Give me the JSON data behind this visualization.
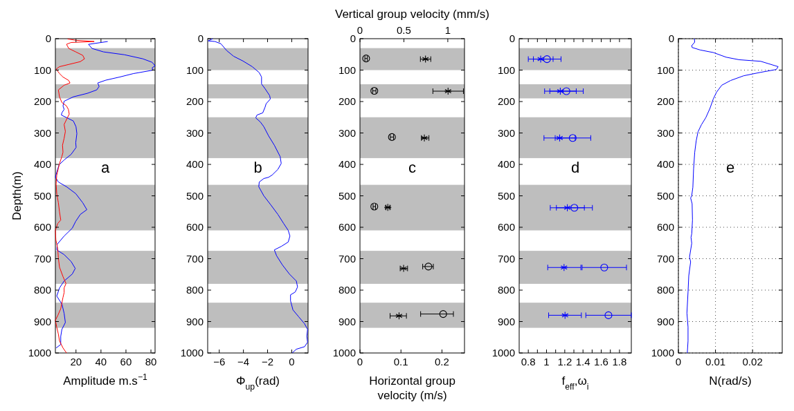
{
  "chart_data": [
    {
      "type": "line",
      "xlabel": "Amplitude m.s$^{−1}$",
      "ylabel": "Depth(m)",
      "annotations": [
        "a"
      ],
      "xlim": [
        3.5,
        83.3
      ],
      "xticks": [
        20,
        40,
        60,
        80
      ],
      "ylim": [
        1000,
        0
      ],
      "yticks": [
        0,
        100,
        200,
        300,
        400,
        500,
        600,
        700,
        800,
        900,
        1000
      ],
      "bands": [
        {
          "axis": "y",
          "from": 30,
          "to": 100,
          "color": "#bebebe"
        },
        {
          "axis": "y",
          "from": 145,
          "to": 190,
          "color": "#bebebe"
        },
        {
          "axis": "y",
          "from": 250,
          "to": 380,
          "color": "#bebebe"
        },
        {
          "axis": "y",
          "from": 465,
          "to": 610,
          "color": "#bebebe"
        },
        {
          "axis": "y",
          "from": 675,
          "to": 780,
          "color": "#bebebe"
        },
        {
          "axis": "y",
          "from": 840,
          "to": 920,
          "color": "#bebebe"
        }
      ],
      "series": [
        {
          "color": "#0000ff",
          "x": [
            45.4,
            30,
            32.8,
            42,
            58.7,
            73.5,
            80.9,
            83.3,
            80.9,
            81.8,
            66,
            55,
            43.9,
            37.4,
            38.5,
            36.6,
            29,
            17.9,
            10.5,
            9.6,
            10.5,
            8.7,
            8.3,
            12.4,
            17.9,
            20,
            20.7,
            19.8,
            20.1,
            16.1,
            10.5,
            6.5,
            5,
            3.5,
            5.9,
            12.4,
            19.8,
            25.4,
            28.7,
            23.5,
            19.8,
            17,
            10.5,
            5,
            4.6,
            10.5,
            16.1,
            19.4,
            17,
            10.5,
            6.8,
            4.6,
            8.8,
            10.5,
            11.5,
            8.7,
            7.8,
            7.8,
            4.1
          ],
          "values": [
            9,
            18,
            31,
            42,
            51,
            64,
            75,
            86,
            93,
            100,
            111,
            122,
            132,
            141,
            152,
            163,
            174,
            185,
            199,
            214,
            225,
            236,
            243,
            251,
            262,
            280,
            302,
            331,
            346,
            368,
            386,
            401,
            419,
            441,
            456,
            471,
            493,
            522,
            544,
            559,
            581,
            603,
            628,
            654,
            672,
            687,
            709,
            731,
            749,
            771,
            793,
            819,
            845,
            874,
            903,
            925,
            947,
            973,
            984
          ]
        },
        {
          "color": "#ff0000",
          "x": [
            13.3,
            19.8,
            34.6,
            16.1,
            12.4,
            14.2,
            19.8,
            25.4,
            26.8,
            23.5,
            14.2,
            6.8,
            4.1,
            6.8,
            9.6,
            14.2,
            15.2,
            10.5,
            5.9,
            6.8,
            8.7,
            12.4,
            13.9,
            14.6,
            12.8,
            10.5,
            11.5,
            10.5,
            9.2,
            9.6,
            8.7,
            6.8,
            5.9,
            4.6,
            4.1,
            4.6,
            5.9,
            6.8,
            7.8,
            5.4,
            3.5,
            3.9,
            5.4,
            5.9,
            6.8,
            9.6,
            12,
            10.5,
            10.5,
            9.6,
            7.8,
            5.4,
            3.5,
            4.6,
            5.9,
            6.8,
            9.6,
            12.4
          ],
          "values": [
            1,
            5,
            9,
            12,
            18,
            31,
            42,
            53,
            64,
            73,
            82,
            89,
            97,
            111,
            122,
            133,
            141,
            148,
            163,
            185,
            203,
            214,
            225,
            240,
            254,
            273,
            295,
            317,
            339,
            361,
            375,
            397,
            412,
            434,
            463,
            493,
            522,
            551,
            577,
            588,
            610,
            640,
            669,
            698,
            727,
            757,
            779,
            793,
            808,
            823,
            859,
            881,
            896,
            918,
            940,
            962,
            984,
            1000
          ]
        }
      ]
    },
    {
      "type": "line",
      "xlabel": "Φ$_{up}$(rad)",
      "annotations": [
        "b"
      ],
      "xlim": [
        -6.96,
        1.35
      ],
      "xticks": [
        {
          "value": -6,
          "label": "−6"
        },
        {
          "value": -4,
          "label": "−4"
        },
        {
          "value": -2,
          "label": "−2"
        },
        0
      ],
      "ylim": [
        1000,
        0
      ],
      "yticks": [
        0,
        100,
        200,
        300,
        400,
        500,
        600,
        700,
        800,
        900,
        1000
      ],
      "bands": [
        {
          "axis": "y",
          "from": 30,
          "to": 100,
          "color": "#bebebe"
        },
        {
          "axis": "y",
          "from": 145,
          "to": 190,
          "color": "#bebebe"
        },
        {
          "axis": "y",
          "from": 250,
          "to": 380,
          "color": "#bebebe"
        },
        {
          "axis": "y",
          "from": 465,
          "to": 610,
          "color": "#bebebe"
        },
        {
          "axis": "y",
          "from": 675,
          "to": 780,
          "color": "#bebebe"
        },
        {
          "axis": "y",
          "from": 840,
          "to": 920,
          "color": "#bebebe"
        }
      ],
      "series": [
        {
          "color": "#0000ff",
          "x": [
            -6.54,
            -6.92,
            -6.35,
            -5.87,
            -5.38,
            -4.81,
            -4.04,
            -3.27,
            -2.69,
            -2.5,
            -2.5,
            -2.21,
            -1.83,
            -1.77,
            -2.12,
            -2.21,
            -2.4,
            -2.88,
            -2.98,
            -2.6,
            -2.31,
            -1.92,
            -1.44,
            -0.96,
            -0.87,
            -1.15,
            -1.63,
            -1.92,
            -2.31,
            -2.69,
            -2.73,
            -2.31,
            -1.73,
            -1.15,
            -0.67,
            -0.29,
            -0.15,
            -0.29,
            -0.87,
            -1.44,
            -1.25,
            -0.77,
            -0.19,
            0.38,
            0.48,
            0.29,
            -0.1,
            -0.1,
            0.1,
            0.58,
            1.06,
            1.31,
            1.25,
            1.31,
            1.06,
            0.38,
            0.04
          ],
          "values": [
            0,
            7,
            9,
            16,
            38,
            56,
            71,
            89,
            108,
            122,
            144,
            159,
            181,
            192,
            207,
            218,
            236,
            243,
            252,
            265,
            280,
            309,
            339,
            375,
            397,
            416,
            434,
            441,
            445,
            456,
            471,
            500,
            529,
            559,
            588,
            610,
            628,
            647,
            661,
            672,
            691,
            720,
            749,
            771,
            790,
            806,
            815,
            834,
            863,
            885,
            907,
            925,
            947,
            966,
            980,
            988,
            1000
          ]
        }
      ]
    },
    {
      "type": "scatter",
      "xlabel": "Horizontal group velocity (m/s)",
      "x2label": "Vertical group velocity (mm/s)",
      "annotations": [
        "c"
      ],
      "xlim": [
        0,
        0.255
      ],
      "xticks": [
        0,
        0.1,
        0.2
      ],
      "x2lim": [
        0,
        1.19
      ],
      "x2ticks": [
        0,
        0.5,
        1
      ],
      "ylim": [
        1000,
        0
      ],
      "yticks": [
        0,
        100,
        200,
        300,
        400,
        500,
        600,
        700,
        800,
        900,
        1000
      ],
      "bands": [
        {
          "axis": "y",
          "from": 30,
          "to": 100,
          "color": "#bebebe"
        },
        {
          "axis": "y",
          "from": 145,
          "to": 190,
          "color": "#bebebe"
        },
        {
          "axis": "y",
          "from": 250,
          "to": 380,
          "color": "#bebebe"
        },
        {
          "axis": "y",
          "from": 465,
          "to": 610,
          "color": "#bebebe"
        },
        {
          "axis": "y",
          "from": 675,
          "to": 780,
          "color": "#bebebe"
        },
        {
          "axis": "y",
          "from": 840,
          "to": 920,
          "color": "#bebebe"
        }
      ],
      "series": [
        {
          "color": "#000000",
          "marker": "circle",
          "x": [
            0.015,
            0.035,
            0.078,
            0.035,
            0.167,
            0.203
          ],
          "values": [
            63,
            166,
            313,
            534,
            725,
            876
          ],
          "xerrors": [
            0.003,
            0.004,
            0.004,
            0.003,
            [
              0.153,
              0.179
            ],
            [
              0.148,
              0.228
            ]
          ]
        },
        {
          "color": "#000000",
          "marker": "cross",
          "axis": "x2",
          "x": [
            0.746,
            1.003,
            0.733,
            0.317,
            0.497,
            0.445
          ],
          "values": [
            65,
            167,
            316,
            537,
            731,
            882
          ],
          "xerrors": [
            [
              0.688,
              0.806
            ],
            [
              0.83,
              1.178
            ],
            [
              0.7,
              0.785
            ],
            [
              0.296,
              0.34
            ],
            [
              0.458,
              0.542
            ],
            [
              0.343,
              0.529
            ]
          ]
        }
      ]
    },
    {
      "type": "scatter",
      "xlabel": "f$_{eff}$,ω$_{i}$",
      "annotations": [
        "d"
      ],
      "xlim": [
        0.7,
        1.93
      ],
      "xticks": [
        0.8,
        {
          "value": 0.9,
          "label": null
        },
        1,
        {
          "value": 1.1,
          "label": null
        },
        1.2,
        {
          "value": 1.3,
          "label": null
        },
        1.4,
        {
          "value": 1.5,
          "label": null
        },
        1.6,
        {
          "value": 1.7,
          "label": null
        },
        1.8
      ],
      "ylim": [
        1000,
        0
      ],
      "yticks": [
        0,
        100,
        200,
        300,
        400,
        500,
        600,
        700,
        800,
        900,
        1000
      ],
      "bands": [
        {
          "axis": "y",
          "from": 30,
          "to": 100,
          "color": "#bebebe"
        },
        {
          "axis": "y",
          "from": 145,
          "to": 190,
          "color": "#bebebe"
        },
        {
          "axis": "y",
          "from": 250,
          "to": 380,
          "color": "#bebebe"
        },
        {
          "axis": "y",
          "from": 465,
          "to": 610,
          "color": "#bebebe"
        },
        {
          "axis": "y",
          "from": 675,
          "to": 780,
          "color": "#bebebe"
        },
        {
          "axis": "y",
          "from": 840,
          "to": 920,
          "color": "#bebebe"
        }
      ],
      "series": [
        {
          "color": "#0000ff",
          "marker": "cross",
          "x": [
            0.936,
            1.151,
            1.144,
            1.228,
            1.192,
            1.203
          ],
          "values": [
            65,
            167,
            316,
            538,
            728,
            880
          ],
          "xerrors": [
            [
              0.8,
              1.072
            ],
            [
              0.979,
              1.326
            ],
            [
              0.972,
              1.315
            ],
            [
              1.041,
              1.415
            ],
            [
              1.013,
              1.377
            ],
            [
              1.023,
              1.382
            ]
          ]
        },
        {
          "color": "#0000ff",
          "marker": "circle",
          "x": [
            1.005,
            1.218,
            1.287,
            1.305,
            1.633,
            1.679
          ],
          "values": [
            65,
            167,
            316,
            538,
            728,
            880
          ],
          "xerrors": [
            [
              0.856,
              1.159
            ],
            [
              1.036,
              1.403
            ],
            [
              1.095,
              1.485
            ],
            [
              1.108,
              1.503
            ],
            [
              1.39,
              1.877
            ],
            [
              1.431,
              1.93
            ]
          ]
        }
      ]
    },
    {
      "type": "line",
      "xlabel": "N(rad/s)",
      "annotations": [
        "e"
      ],
      "grid": true,
      "xlim": [
        0,
        0.028
      ],
      "xticks": [
        0,
        0.01,
        0.02
      ],
      "ylim": [
        1000,
        0
      ],
      "yticks": [
        0,
        100,
        200,
        300,
        400,
        500,
        600,
        700,
        800,
        900,
        1000
      ],
      "series": [
        {
          "color": "#0000ff",
          "x": [
            0.0043,
            0.0044,
            0.0036,
            0.0037,
            0.0059,
            0.0094,
            0.0129,
            0.0164,
            0.0222,
            0.0269,
            0.0264,
            0.0222,
            0.0176,
            0.0141,
            0.0117,
            0.0103,
            0.0094,
            0.0085,
            0.0074,
            0.0062,
            0.0053,
            0.0048,
            0.0044,
            0.0041,
            0.0039,
            0.0036,
            0.0033,
            0.0037,
            0.0038,
            0.0036,
            0.0034,
            0.0036,
            0.003,
            0.0033,
            0.0028,
            0.0026,
            0.0023,
            0.0026,
            0.0026,
            0.0024
          ],
          "values": [
            0,
            11,
            22,
            28,
            36,
            44,
            59,
            67,
            72,
            89,
            98,
            107,
            118,
            133,
            148,
            170,
            192,
            222,
            251,
            274,
            296,
            325,
            362,
            414,
            473,
            499,
            507,
            525,
            577,
            621,
            632,
            651,
            695,
            710,
            754,
            806,
            873,
            917,
            962,
            1000
          ]
        }
      ]
    }
  ]
}
